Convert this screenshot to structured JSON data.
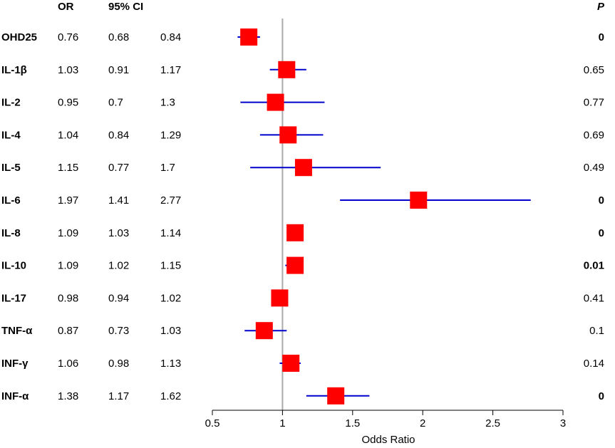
{
  "chart_data": {
    "type": "forest",
    "headers": {
      "or": "OR",
      "ci": "95% CI",
      "p": "P"
    },
    "rows": [
      {
        "label": "OHD25",
        "or": "0.76",
        "ci_low": "0.68",
        "ci_high": "0.84",
        "p": "0",
        "p_bold": true
      },
      {
        "label": "IL-1β",
        "or": "1.03",
        "ci_low": "0.91",
        "ci_high": "1.17",
        "p": "0.65",
        "p_bold": false
      },
      {
        "label": "IL-2",
        "or": "0.95",
        "ci_low": "0.7",
        "ci_high": "1.3",
        "p": "0.77",
        "p_bold": false
      },
      {
        "label": "IL-4",
        "or": "1.04",
        "ci_low": "0.84",
        "ci_high": "1.29",
        "p": "0.69",
        "p_bold": false
      },
      {
        "label": "IL-5",
        "or": "1.15",
        "ci_low": "0.77",
        "ci_high": "1.7",
        "p": "0.49",
        "p_bold": false
      },
      {
        "label": "IL-6",
        "or": "1.97",
        "ci_low": "1.41",
        "ci_high": "2.77",
        "p": "0",
        "p_bold": true
      },
      {
        "label": "IL-8",
        "or": "1.09",
        "ci_low": "1.03",
        "ci_high": "1.14",
        "p": "0",
        "p_bold": true
      },
      {
        "label": "IL-10",
        "or": "1.09",
        "ci_low": "1.02",
        "ci_high": "1.15",
        "p": "0.01",
        "p_bold": true
      },
      {
        "label": "IL-17",
        "or": "0.98",
        "ci_low": "0.94",
        "ci_high": "1.02",
        "p": "0.41",
        "p_bold": false
      },
      {
        "label": "TNF-α",
        "or": "0.87",
        "ci_low": "0.73",
        "ci_high": "1.03",
        "p": "0.1",
        "p_bold": false
      },
      {
        "label": "INF-γ",
        "or": "1.06",
        "ci_low": "0.98",
        "ci_high": "1.13",
        "p": "0.14",
        "p_bold": false
      },
      {
        "label": "INF-α",
        "or": "1.38",
        "ci_low": "1.17",
        "ci_high": "1.62",
        "p": "0",
        "p_bold": true
      }
    ],
    "xlabel": "Odds Ratio",
    "xlim": [
      0.5,
      3
    ],
    "xticks": [
      "0.5",
      "1",
      "1.5",
      "2",
      "2.5",
      "3"
    ],
    "reference_line": 1,
    "colors": {
      "marker": "#ff0000",
      "ci_line": "#0000cc",
      "reference": "#aaaaaa",
      "axis": "#000000"
    }
  }
}
